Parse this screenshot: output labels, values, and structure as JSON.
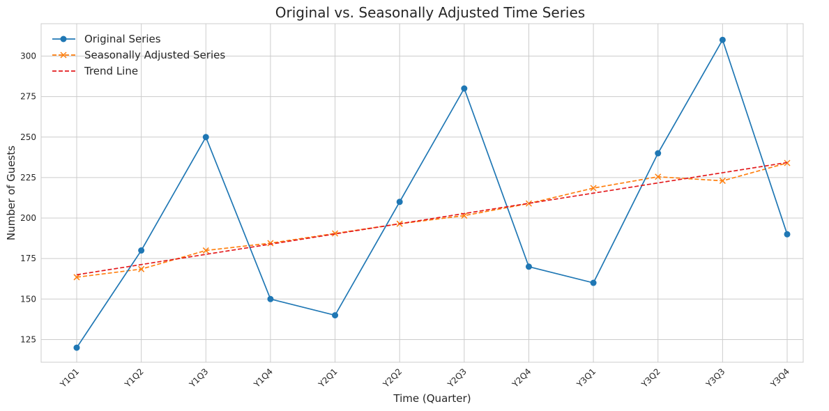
{
  "chart_data": {
    "type": "line",
    "title": "Original vs. Seasonally Adjusted Time Series",
    "xlabel": "Time (Quarter)",
    "ylabel": "Number of Guests",
    "categories": [
      "Y1Q1",
      "Y1Q2",
      "Y1Q3",
      "Y1Q4",
      "Y2Q1",
      "Y2Q2",
      "Y2Q3",
      "Y2Q4",
      "Y3Q1",
      "Y3Q2",
      "Y3Q3",
      "Y3Q4"
    ],
    "ylim": [
      111,
      320
    ],
    "yticks": [
      125,
      150,
      175,
      200,
      225,
      250,
      275,
      300
    ],
    "grid": true,
    "legend_position": "top-left",
    "series": [
      {
        "name": "Original Series",
        "color": "#1f77b4",
        "style": "solid",
        "marker": "circle",
        "values": [
          120,
          180,
          250,
          150,
          140,
          210,
          280,
          170,
          160,
          240,
          310,
          190
        ]
      },
      {
        "name": "Seasonally Adjusted Series",
        "color": "#ff7f0e",
        "style": "dashed",
        "marker": "x",
        "values": [
          163.5,
          168.5,
          180,
          184.5,
          190.5,
          196.5,
          201.5,
          209,
          218.5,
          225.5,
          223,
          234
        ]
      },
      {
        "name": "Trend Line",
        "color": "#e31a1c",
        "style": "dashed",
        "marker": "none",
        "values": [
          165,
          171.3,
          177.6,
          183.9,
          190.2,
          196.5,
          202.8,
          209.1,
          215.4,
          221.7,
          228,
          234.3
        ]
      }
    ]
  }
}
